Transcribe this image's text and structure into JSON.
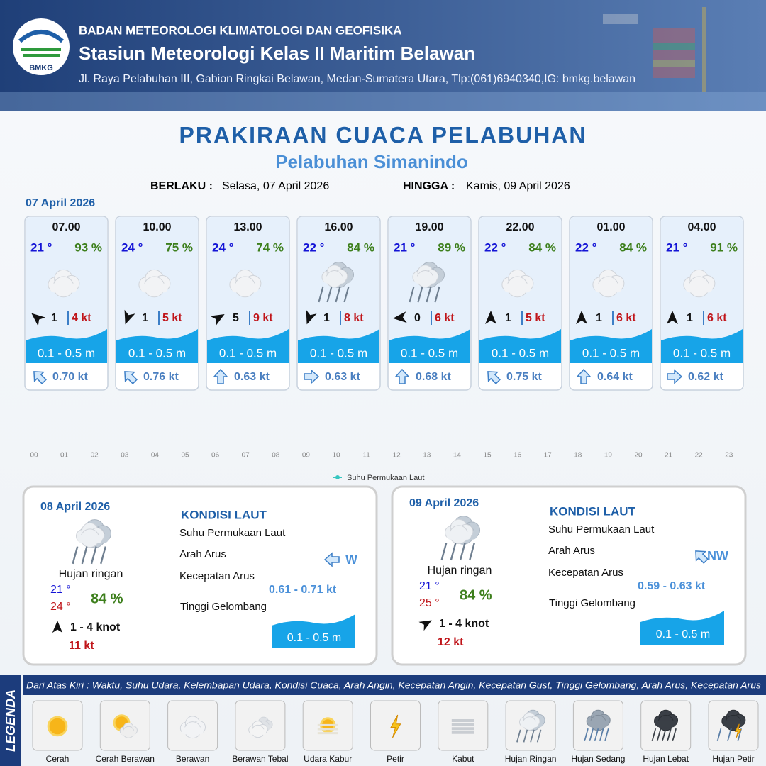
{
  "header": {
    "logo": "BMKG",
    "org": "BADAN METEOROLOGI KLIMATOLOGI DAN GEOFISIKA",
    "station": "Stasiun Meteorologi Kelas II Maritim Belawan",
    "address": "Jl. Raya Pelabuhan III, Gabion Ringkai Belawan, Medan-Sumatera Utara, Tlp:(061)6940340,IG: bmkg.belawan"
  },
  "title": "PRAKIRAAN CUACA PELABUHAN",
  "subtitle": "Pelabuhan Simanindo",
  "validity": {
    "from_label": "BERLAKU :",
    "from": "Selasa, 07 April 2026",
    "to_label": "HINGGA :",
    "to": "Kamis, 09 April 2026"
  },
  "day1": {
    "date": "07 April 2026",
    "cards": [
      {
        "time": "07.00",
        "temp": "21 °",
        "humidity": "93 %",
        "wind": "1",
        "gust": "4 kt",
        "wave": "0.1 - 0.5 m",
        "current": "0.70 kt"
      },
      {
        "time": "10.00",
        "temp": "24 °",
        "humidity": "75 %",
        "wind": "1",
        "gust": "5 kt",
        "wave": "0.1 - 0.5 m",
        "current": "0.76 kt"
      },
      {
        "time": "13.00",
        "temp": "24 °",
        "humidity": "74 %",
        "wind": "5",
        "gust": "9 kt",
        "wave": "0.1 - 0.5 m",
        "current": "0.63 kt"
      },
      {
        "time": "16.00",
        "temp": "22 °",
        "humidity": "84 %",
        "wind": "1",
        "gust": "8 kt",
        "wave": "0.1 - 0.5 m",
        "current": "0.63 kt"
      },
      {
        "time": "19.00",
        "temp": "21 °",
        "humidity": "89 %",
        "wind": "0",
        "gust": "6 kt",
        "wave": "0.1 - 0.5 m",
        "current": "0.68 kt"
      },
      {
        "time": "22.00",
        "temp": "22 °",
        "humidity": "84 %",
        "wind": "1",
        "gust": "5 kt",
        "wave": "0.1 - 0.5 m",
        "current": "0.75 kt"
      },
      {
        "time": "01.00",
        "temp": "22 °",
        "humidity": "84 %",
        "wind": "1",
        "gust": "6 kt",
        "wave": "0.1 - 0.5 m",
        "current": "0.64 kt"
      },
      {
        "time": "04.00",
        "temp": "21 °",
        "humidity": "91 %",
        "wind": "1",
        "gust": "6 kt",
        "wave": "0.1 - 0.5 m",
        "current": "0.62 kt"
      }
    ]
  },
  "hours": [
    "00",
    "01",
    "02",
    "03",
    "04",
    "05",
    "06",
    "07",
    "08",
    "09",
    "10",
    "11",
    "12",
    "13",
    "14",
    "15",
    "16",
    "17",
    "18",
    "19",
    "20",
    "21",
    "22",
    "23"
  ],
  "sst_legend": "Suhu Permukaan Laut",
  "days": [
    {
      "date": "08 April 2026",
      "condition": "Hujan ringan",
      "temp_min": "21 °",
      "temp_max": "24 °",
      "humidity": "84 %",
      "wind": "1 - 4 knot",
      "gust": "11 kt",
      "sea_heading": "KONDISI LAUT",
      "sst_label": "Suhu Permukaan Laut",
      "current_dir_label": "Arah Arus",
      "current_speed_label": "Kecepatan Arus",
      "wave_label": "Tinggi Gelombang",
      "current_dir": "W",
      "current_speed": "0.61 - 0.71 kt",
      "wave": "0.1 - 0.5 m"
    },
    {
      "date": "09 April 2026",
      "condition": "Hujan ringan",
      "temp_min": "21 °",
      "temp_max": "25 °",
      "humidity": "84 %",
      "wind": "1 - 4 knot",
      "gust": "12 kt",
      "sea_heading": "KONDISI LAUT",
      "sst_label": "Suhu Permukaan Laut",
      "current_dir_label": "Arah Arus",
      "current_speed_label": "Kecepatan Arus",
      "wave_label": "Tinggi Gelombang",
      "current_dir": "NW",
      "current_speed": "0.59 - 0.63 kt",
      "wave": "0.1 - 0.5 m"
    }
  ],
  "legend": {
    "title": "LEGENDA",
    "description": "Dari Atas Kiri : Waktu, Suhu Udara, Kelembapan Udara, Kondisi Cuaca, Arah Angin, Kecepatan Angin, Kecepatan Gust, Tinggi Gelombang, Arah Arus, Kecepatan Arus",
    "items": [
      "Cerah",
      "Cerah Berawan",
      "Berawan",
      "Berawan Tebal",
      "Udara Kabur",
      "Petir",
      "Kabut",
      "Hujan Ringan",
      "Hujan Sedang",
      "Hujan Lebat",
      "Hujan Petir"
    ]
  }
}
